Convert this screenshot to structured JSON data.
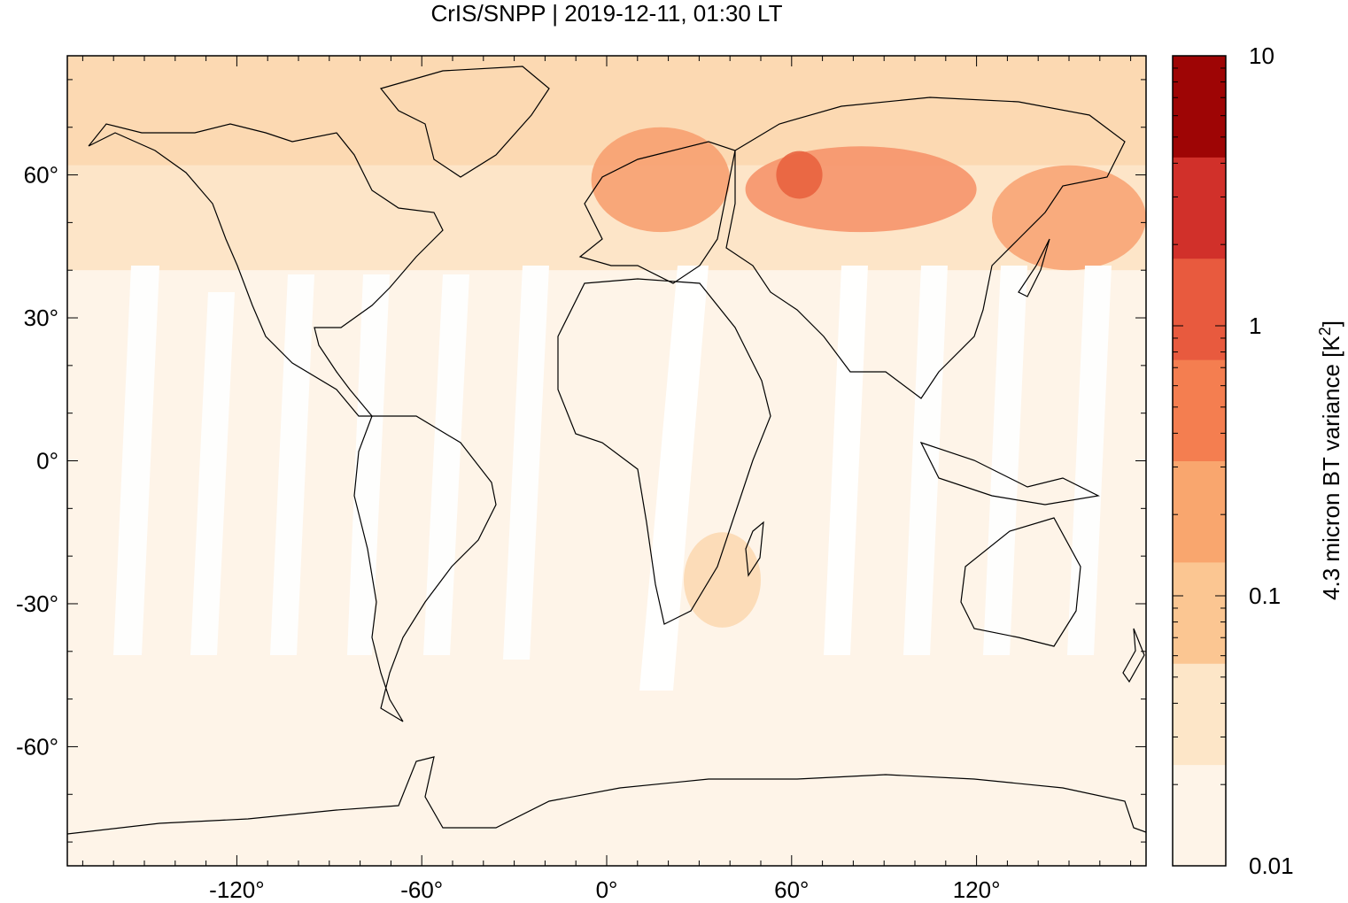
{
  "title": "CrIS/SNPP | 2019-12-11, 01:30 LT",
  "map": {
    "projection": "equirectangular",
    "lon_range": [
      -175,
      175
    ],
    "lat_range": [
      -85,
      85
    ],
    "x_ticks": [
      {
        "value": -120,
        "label": "-120°"
      },
      {
        "value": -60,
        "label": "-60°"
      },
      {
        "value": 0,
        "label": "0°"
      },
      {
        "value": 60,
        "label": "60°"
      },
      {
        "value": 120,
        "label": "120°"
      }
    ],
    "y_ticks": [
      {
        "value": 60,
        "label": "60°"
      },
      {
        "value": 30,
        "label": "30°"
      },
      {
        "value": 0,
        "label": "0°"
      },
      {
        "value": -30,
        "label": "-30°"
      },
      {
        "value": -60,
        "label": "-60°"
      }
    ],
    "background_color": "#fef4e8"
  },
  "colorbar": {
    "label_text": "4.3 micron BT variance [K",
    "label_sup": "2",
    "label_close": "]",
    "scale": "log",
    "range": [
      0.01,
      10
    ],
    "ticks": [
      {
        "value": 10,
        "label": "10"
      },
      {
        "value": 1,
        "label": "1"
      },
      {
        "value": 0.1,
        "label": "0.1"
      },
      {
        "value": 0.01,
        "label": "0.01"
      }
    ],
    "colors": [
      "#fef4e8",
      "#fde6c8",
      "#fbc692",
      "#f9a66e",
      "#f47e50",
      "#e85a3e",
      "#d1302a",
      "#9e0505"
    ]
  },
  "regions": [
    {
      "name": "northern-europe-band",
      "lon": [
        -5,
        40
      ],
      "lat": [
        48,
        70
      ],
      "color": "#f7a070"
    },
    {
      "name": "western-siberia-band",
      "lon": [
        45,
        120
      ],
      "lat": [
        48,
        66
      ],
      "color": "#f6946a"
    },
    {
      "name": "central-siberia-core",
      "lon": [
        55,
        70
      ],
      "lat": [
        55,
        65
      ],
      "color": "#e8633f"
    },
    {
      "name": "east-asia-band",
      "lon": [
        125,
        175
      ],
      "lat": [
        40,
        62
      ],
      "color": "#f8a474"
    },
    {
      "name": "arctic-band",
      "lon": [
        -175,
        175
      ],
      "lat": [
        62,
        85
      ],
      "color": "#fcd4a8"
    },
    {
      "name": "north-midlat-band",
      "lon": [
        -175,
        175
      ],
      "lat": [
        40,
        62
      ],
      "color": "#fde2c2"
    },
    {
      "name": "southern-africa-patch",
      "lon": [
        25,
        50
      ],
      "lat": [
        -35,
        -15
      ],
      "color": "#fcd9b2"
    }
  ]
}
